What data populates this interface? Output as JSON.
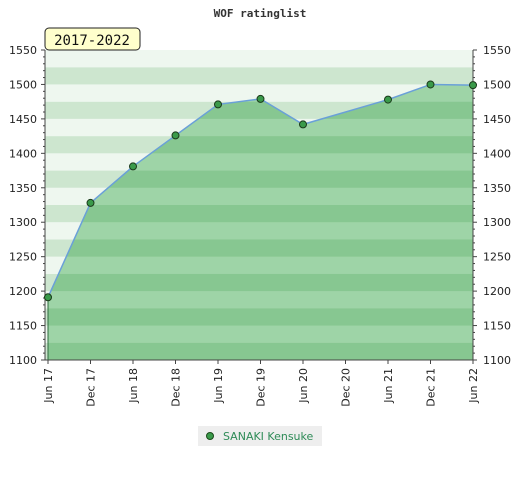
{
  "chart_data": {
    "type": "area",
    "title": "WOF ratinglist",
    "period_label": "2017-2022",
    "x_ticks": [
      "Jun 17",
      "Dec 17",
      "Jun 18",
      "Dec 18",
      "Jun 19",
      "Dec 19",
      "Jun 20",
      "Dec 20",
      "Jun 21",
      "Dec 21",
      "Jun 22"
    ],
    "ylim": [
      1100,
      1550
    ],
    "y_ticks": [
      1100,
      1150,
      1200,
      1250,
      1300,
      1350,
      1400,
      1450,
      1500,
      1550
    ],
    "series": [
      {
        "name": "SANAKI Kensuke",
        "x": [
          "Jun 17",
          "Dec 17",
          "Jun 18",
          "Dec 18",
          "Jun 19",
          "Dec 19",
          "Jun 20",
          "Jun 21",
          "Dec 21",
          "Jun 22"
        ],
        "values": [
          1191,
          1328,
          1381,
          1426,
          1471,
          1479,
          1442,
          1478,
          1500,
          1499
        ]
      }
    ],
    "legend_position": "bottom-center",
    "colors": {
      "area": "#5cb86c",
      "line": "#6aa0d8",
      "marker": "#3a9a4a",
      "band_dark": "#cde6cf",
      "band_light": "#eef7ef"
    }
  }
}
